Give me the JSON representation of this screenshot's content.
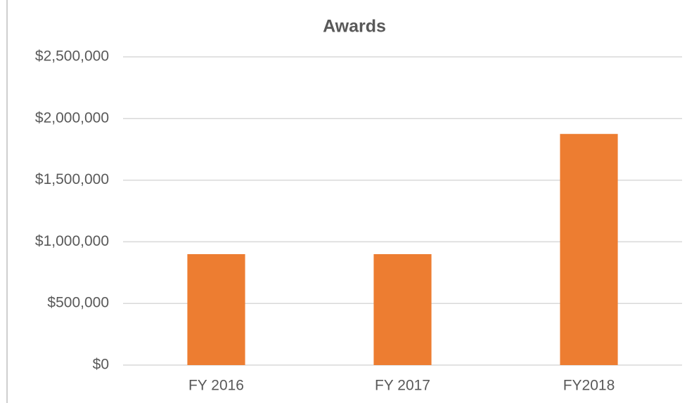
{
  "chart_data": {
    "type": "bar",
    "title": "Awards",
    "categories": [
      "FY 2016",
      "FY 2017",
      "FY2018"
    ],
    "values": [
      900000,
      900000,
      1875000
    ],
    "color": "#ed7d31",
    "ylim": [
      0,
      2500000
    ],
    "yticks": [
      {
        "value": 0,
        "label": "$0"
      },
      {
        "value": 500000,
        "label": "$500,000"
      },
      {
        "value": 1000000,
        "label": "$1,000,000"
      },
      {
        "value": 1500000,
        "label": "$1,500,000"
      },
      {
        "value": 2000000,
        "label": "$2,000,000"
      },
      {
        "value": 2500000,
        "label": "$2,500,000"
      }
    ],
    "grid": true
  }
}
